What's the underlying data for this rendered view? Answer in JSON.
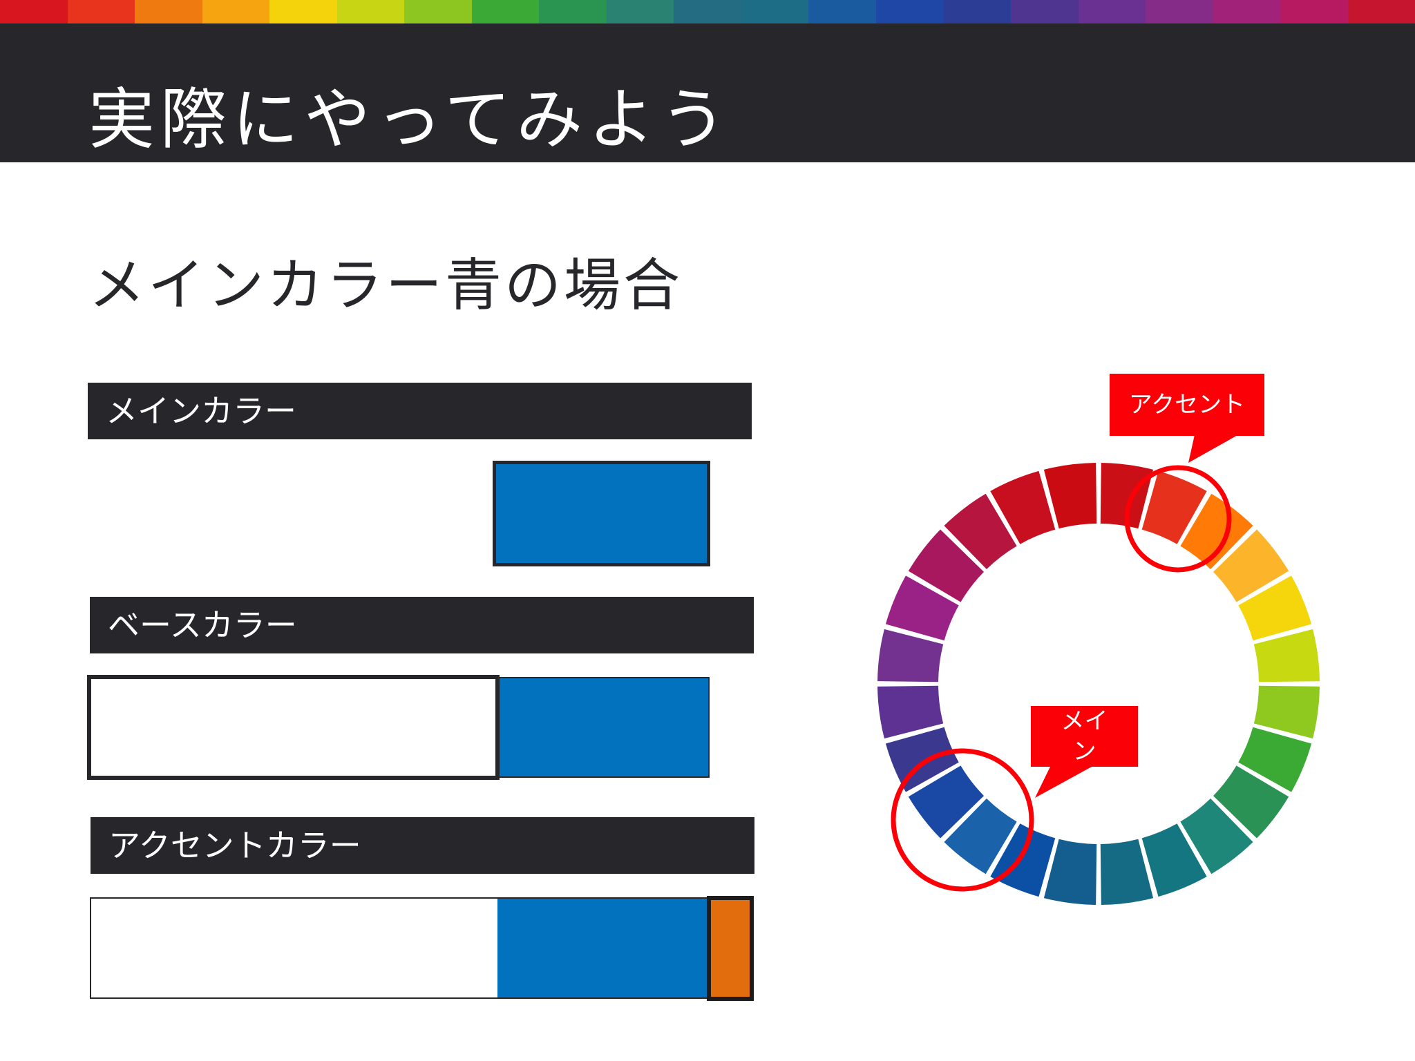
{
  "slide": {
    "title": "実際にやってみよう",
    "subtitle": "メインカラー青の場合"
  },
  "rainbow_strip_colors": [
    "#d8161f",
    "#e8341c",
    "#ef7a10",
    "#f6a511",
    "#f4d20c",
    "#c7d514",
    "#8dc620",
    "#3aa935",
    "#2a9550",
    "#2a8273",
    "#236c81",
    "#1e6d87",
    "#1a5a9e",
    "#1f47a5",
    "#2c3d96",
    "#4f3590",
    "#6a3192",
    "#852c88",
    "#a02379",
    "#b71a61",
    "#c6162f"
  ],
  "sections": [
    {
      "label": "メインカラー"
    },
    {
      "label": "ベースカラー"
    },
    {
      "label": "アクセントカラー"
    }
  ],
  "colors": {
    "main": "#0372be",
    "base": "#ffffff",
    "accent": "#e26d0d",
    "dark": "#27262b",
    "highlight": "#fb0007"
  },
  "color_wheel": {
    "segments": [
      "#cb0f16",
      "#e6321d",
      "#ff7a06",
      "#fcb52b",
      "#f5d60c",
      "#c6d911",
      "#8fc91f",
      "#3aaa35",
      "#2a9255",
      "#1f877a",
      "#147681",
      "#156b84",
      "#135e8f",
      "#0b50a5",
      "#1a63ab",
      "#1948a5",
      "#3b3890",
      "#5e3293",
      "#73328f",
      "#9a2185",
      "#a8185f",
      "#b5153f",
      "#c80f20",
      "#cb0b12"
    ],
    "main_highlight_segment": 14,
    "accent_highlight_segment": 2
  },
  "callouts": {
    "accent": "アクセント",
    "main_line1": "メイ",
    "main_line2": "ン"
  }
}
